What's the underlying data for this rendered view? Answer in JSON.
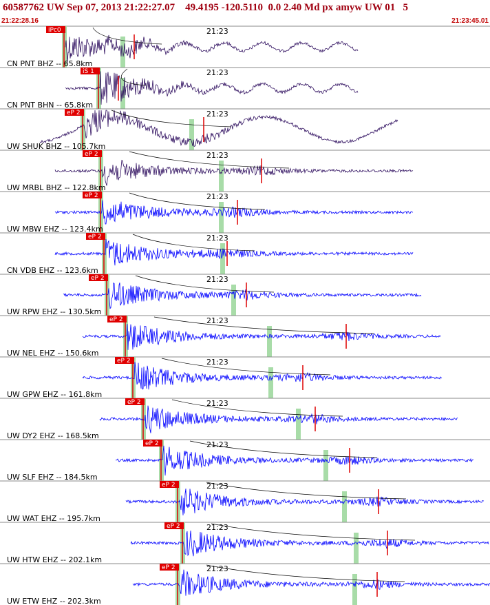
{
  "header": {
    "title": "60587762 UW Sep 07, 2013 21:22:27.07    49.4195 -120.5110  0.0 2.40 Md px amyw UW 01   5",
    "start_time": "21:22:28.16",
    "end_time": "21:23:45.01"
  },
  "traces": [
    {
      "label": "CN PNT BHZ -- 65.8km",
      "pick": "iPc0",
      "minute": "21:23"
    },
    {
      "label": "CN PNT BHN -- 65.8km",
      "pick": "iS 1",
      "minute": "21:23"
    },
    {
      "label": "UW SHUK BHZ -- 105.7km",
      "pick": "eP 2",
      "minute": "21:23"
    },
    {
      "label": "UW MRBL BHZ -- 122.8km",
      "pick": "eP 2",
      "minute": "21:23"
    },
    {
      "label": "UW MBW EHZ -- 123.4km",
      "pick": "eP 2",
      "minute": "21:23"
    },
    {
      "label": "CN VDB EHZ -- 123.6km",
      "pick": "eP 2",
      "minute": "21:23"
    },
    {
      "label": "UW RPW EHZ -- 130.5km",
      "pick": "eP 2",
      "minute": "21:23"
    },
    {
      "label": "UW NEL EHZ -- 150.6km",
      "pick": "eP 2",
      "minute": "21:23"
    },
    {
      "label": "UW GPW EHZ -- 161.8km",
      "pick": "eP 2",
      "minute": "21:23"
    },
    {
      "label": "UW DY2 EHZ -- 168.5km",
      "pick": "eP 2",
      "minute": "21:23"
    },
    {
      "label": "UW SLF EHZ -- 184.5km",
      "pick": "eP 2",
      "minute": "21:23"
    },
    {
      "label": "UW WAT EHZ -- 195.7km",
      "pick": "eP 2",
      "minute": "21:23"
    },
    {
      "label": "UW HTW EHZ -- 202.1km",
      "pick": "eP 2",
      "minute": "21:23"
    },
    {
      "label": "UW ETW EHZ -- 202.3km",
      "pick": "eP 2",
      "minute": "21:23"
    }
  ]
}
